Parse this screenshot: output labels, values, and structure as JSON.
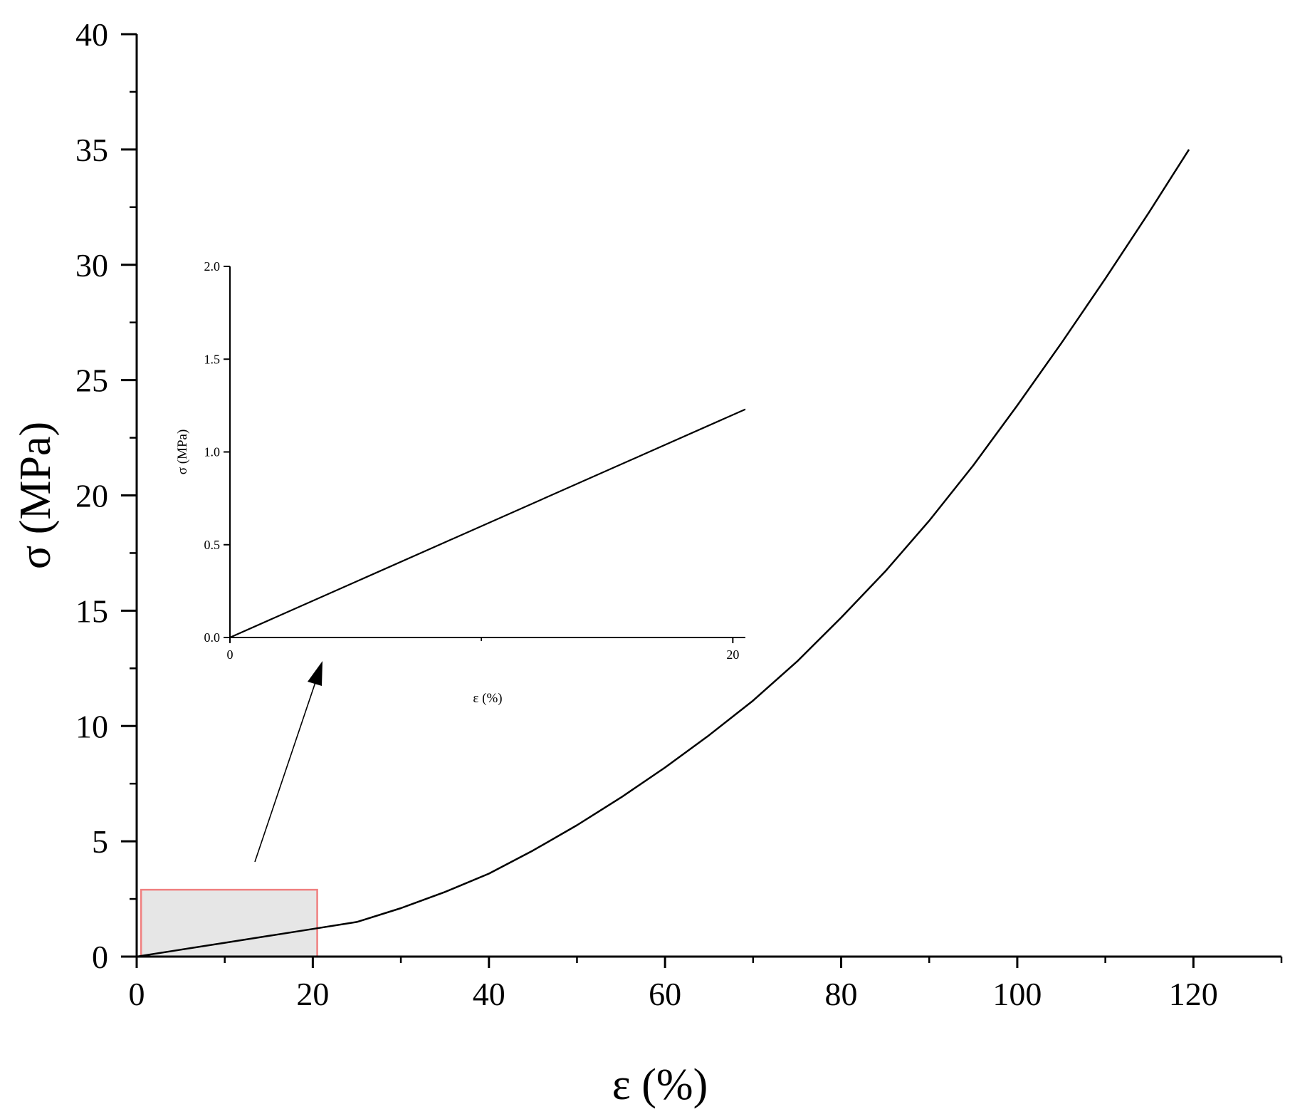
{
  "chart_data": [
    {
      "type": "line",
      "title": "",
      "xlabel": "ε (%)",
      "ylabel": "σ (MPa)",
      "xlim": [
        0,
        130
      ],
      "ylim": [
        0,
        40
      ],
      "xticks": [
        0,
        20,
        40,
        60,
        80,
        100,
        120
      ],
      "yticks": [
        0,
        5,
        10,
        15,
        20,
        25,
        30,
        35,
        40
      ],
      "xtick_labels": [
        "0",
        "20",
        "40",
        "60",
        "80",
        "100",
        "120"
      ],
      "ytick_labels": [
        "0",
        "5",
        "10",
        "15",
        "20",
        "25",
        "30",
        "35",
        "40"
      ],
      "grid": false,
      "series": [
        {
          "x": [
            0,
            5,
            10,
            15,
            20,
            25,
            30,
            35,
            40,
            45,
            50,
            55,
            60,
            65,
            70,
            75,
            80,
            85,
            90,
            95,
            100,
            105,
            110,
            115,
            119.5
          ],
          "y": [
            0,
            0.3,
            0.6,
            0.9,
            1.2,
            1.5,
            2.1,
            2.8,
            3.6,
            4.6,
            5.7,
            6.9,
            8.2,
            9.6,
            11.1,
            12.8,
            14.7,
            16.7,
            18.9,
            21.3,
            23.9,
            26.6,
            29.4,
            32.3,
            35.0
          ]
        }
      ],
      "highlight_region": {
        "x": [
          0.5,
          20.5
        ],
        "y": [
          0,
          2.9
        ],
        "fill": "#e6e6e6",
        "stroke": "#f08080"
      },
      "line_color": "#000000"
    },
    {
      "type": "line",
      "title": "",
      "xlabel": "ε (%)",
      "ylabel": "σ (MPa)",
      "xlim": [
        0,
        20.5
      ],
      "ylim": [
        0,
        2.0
      ],
      "xticks": [
        0,
        20
      ],
      "yticks": [
        0,
        0.5,
        1.0,
        1.5,
        2.0
      ],
      "xtick_labels": [
        "0",
        "20"
      ],
      "ytick_labels": [
        "0.0",
        "0.5",
        "1.0",
        "1.5",
        "2.0"
      ],
      "grid": false,
      "series": [
        {
          "x": [
            0,
            20.5
          ],
          "y": [
            0,
            1.23
          ]
        }
      ],
      "line_color": "#000000"
    }
  ]
}
